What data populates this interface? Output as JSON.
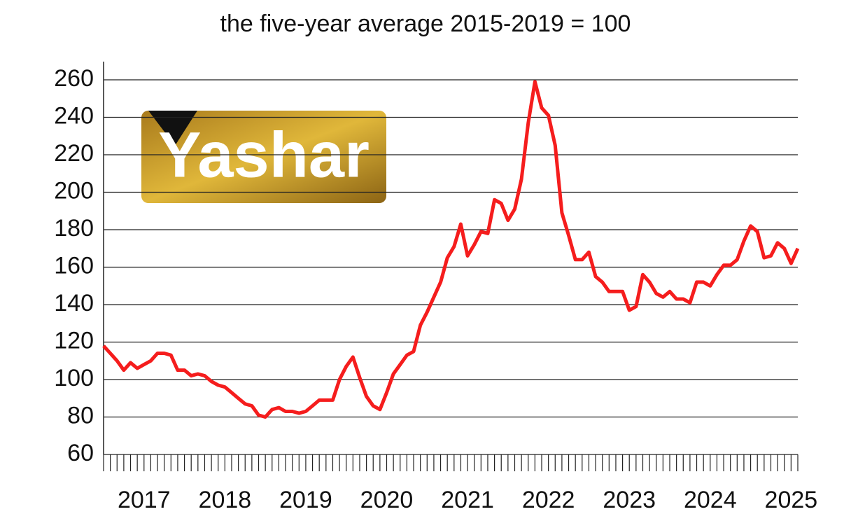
{
  "chart_data": {
    "type": "line",
    "title": "the five-year average 2015-2019 = 100",
    "watermark": "Yashar",
    "categories": [
      null,
      null,
      null,
      null,
      null,
      null,
      "2017",
      null,
      null,
      null,
      null,
      null,
      null,
      null,
      null,
      null,
      null,
      null,
      "2018",
      null,
      null,
      null,
      null,
      null,
      null,
      null,
      null,
      null,
      null,
      null,
      "2019",
      null,
      null,
      null,
      null,
      null,
      null,
      null,
      null,
      null,
      null,
      null,
      "2020",
      null,
      null,
      null,
      null,
      null,
      null,
      null,
      null,
      null,
      null,
      null,
      "2021",
      null,
      null,
      null,
      null,
      null,
      null,
      null,
      null,
      null,
      null,
      null,
      "2022",
      null,
      null,
      null,
      null,
      null,
      null,
      null,
      null,
      null,
      null,
      null,
      "2023",
      null,
      null,
      null,
      null,
      null,
      null,
      null,
      null,
      null,
      null,
      null,
      "2024",
      null,
      null,
      null,
      null,
      null,
      null,
      null,
      null,
      null,
      null,
      null,
      "2025",
      null
    ],
    "values": [
      118,
      114,
      110,
      105,
      109,
      106,
      108,
      110,
      114,
      114,
      113,
      105,
      105,
      102,
      103,
      102,
      99,
      97,
      96,
      93,
      90,
      87,
      86,
      81,
      80,
      84,
      85,
      83,
      83,
      82,
      83,
      86,
      89,
      89,
      89,
      100,
      107,
      112,
      101,
      91,
      86,
      84,
      93,
      103,
      108,
      113,
      115,
      129,
      136,
      144,
      152,
      165,
      171,
      183,
      166,
      172,
      179,
      178,
      196,
      194,
      185,
      191,
      207,
      237,
      259,
      245,
      241,
      225,
      189,
      177,
      164,
      164,
      168,
      155,
      152,
      147,
      147,
      147,
      137,
      139,
      156,
      152,
      146,
      144,
      147,
      143,
      143,
      141,
      152,
      152,
      150,
      156,
      161,
      161,
      164,
      174,
      182,
      179,
      165,
      166,
      173,
      170,
      162,
      170
    ],
    "color": "#f51d1d",
    "ylim": [
      60,
      260
    ],
    "yticks": [
      60,
      80,
      100,
      120,
      140,
      160,
      180,
      200,
      220,
      240,
      260
    ],
    "grid": true
  }
}
